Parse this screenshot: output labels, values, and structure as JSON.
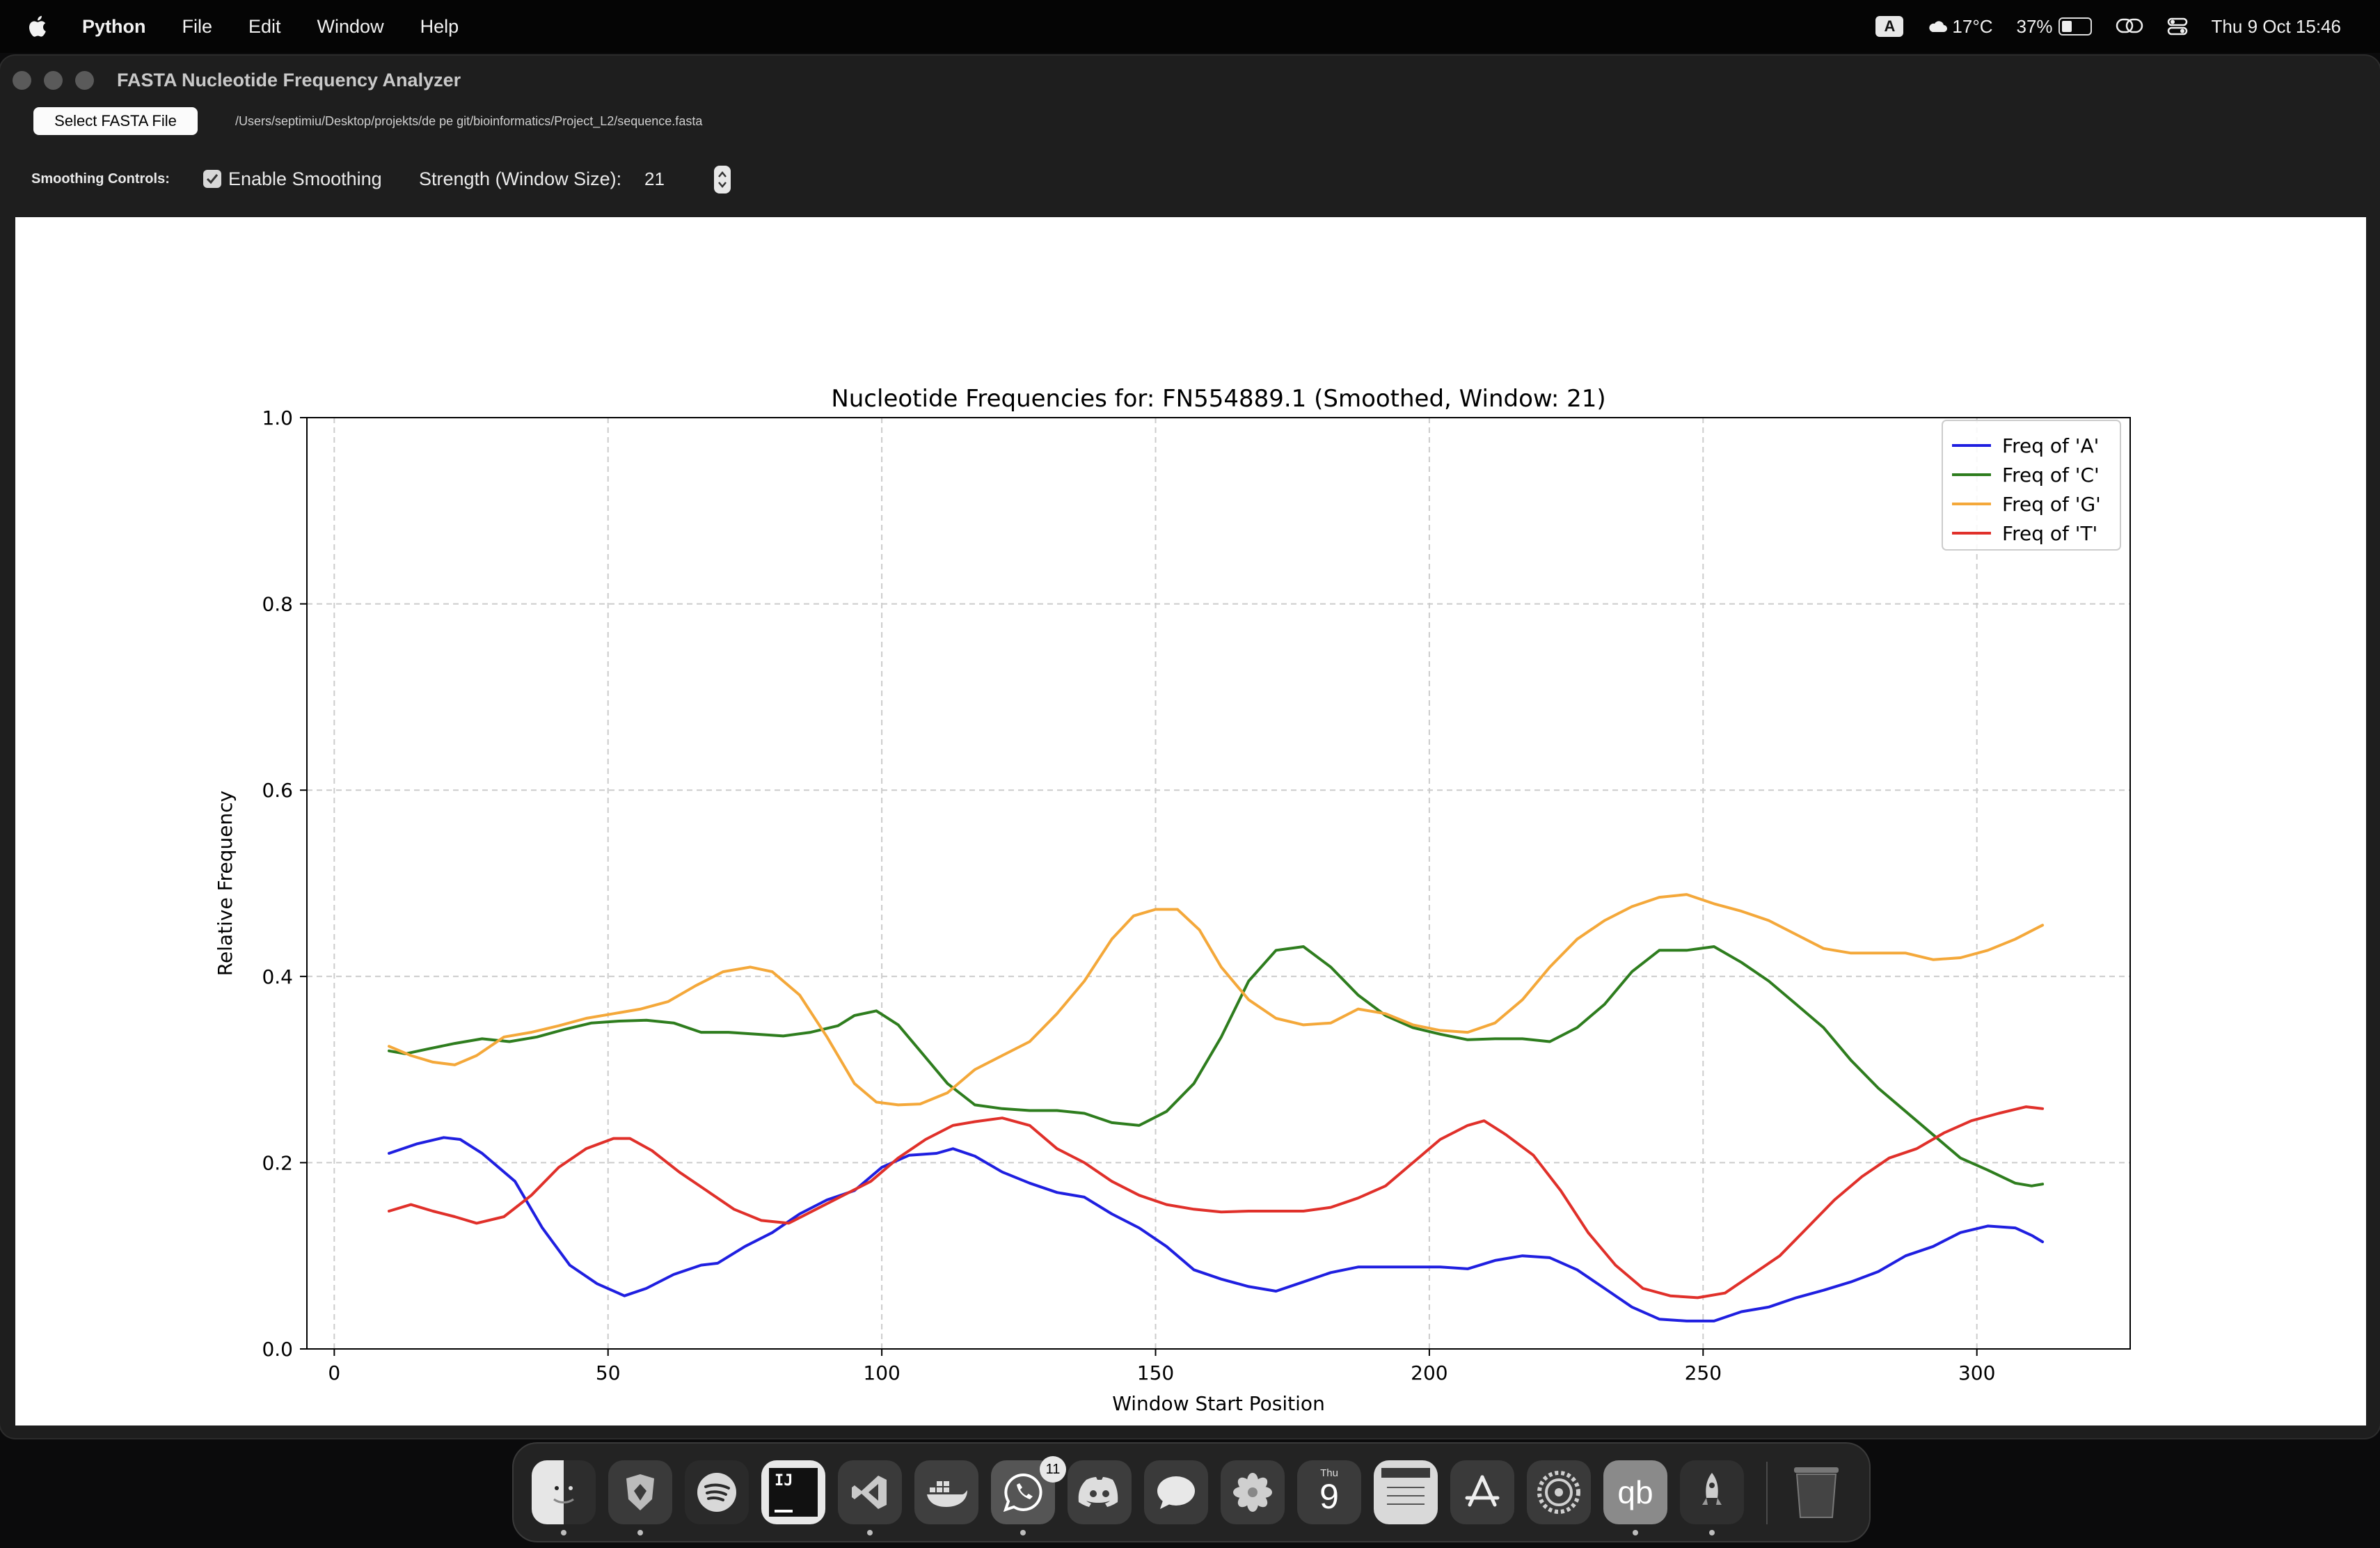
{
  "menubar": {
    "app_name": "Python",
    "items": [
      "File",
      "Edit",
      "Window",
      "Help"
    ],
    "keyboard": "A",
    "weather": "17°C",
    "battery": "37%",
    "datetime": "Thu 9 Oct  15:46"
  },
  "window": {
    "title": "FASTA Nucleotide Frequency Analyzer",
    "select_button": "Select FASTA File",
    "file_path": "/Users/septimiu/Desktop/projekts/de pe git/bioinformatics/Project_L2/sequence.fasta",
    "smoothing_label": "Smoothing Controls:",
    "enable_smoothing_label": "Enable Smoothing",
    "enable_smoothing_checked": true,
    "strength_label": "Strength (Window Size):",
    "strength_value": "21"
  },
  "dock": {
    "calendar_day": "Thu",
    "calendar_date": "9",
    "whatsapp_badge": "11",
    "qb_label": "qb"
  },
  "chart_data": {
    "type": "line",
    "title": "Nucleotide Frequencies for: FN554889.1 (Smoothed, Window: 21)",
    "xlabel": "Window Start Position",
    "ylabel": "Relative Frequency",
    "xlim": [
      -5,
      328
    ],
    "ylim": [
      0.0,
      1.0
    ],
    "xticks": [
      0,
      50,
      100,
      150,
      200,
      250,
      300
    ],
    "yticks": [
      0.0,
      0.2,
      0.4,
      0.6,
      0.8,
      1.0
    ],
    "grid": true,
    "legend_position": "top-right",
    "series": [
      {
        "name": "Freq of 'A'",
        "color": "#1f1fe0",
        "x": [
          10,
          15,
          20,
          23,
          27,
          33,
          38,
          43,
          48,
          53,
          57,
          62,
          67,
          70,
          75,
          80,
          85,
          90,
          95,
          100,
          105,
          110,
          113,
          117,
          122,
          127,
          132,
          137,
          142,
          147,
          152,
          157,
          162,
          167,
          172,
          177,
          182,
          187,
          192,
          197,
          202,
          207,
          212,
          217,
          222,
          227,
          232,
          237,
          242,
          247,
          252,
          257,
          262,
          267,
          272,
          277,
          282,
          287,
          292,
          297,
          302,
          307,
          310,
          312
        ],
        "y": [
          0.21,
          0.22,
          0.227,
          0.225,
          0.21,
          0.18,
          0.13,
          0.09,
          0.07,
          0.057,
          0.065,
          0.08,
          0.09,
          0.092,
          0.11,
          0.125,
          0.145,
          0.16,
          0.17,
          0.195,
          0.208,
          0.21,
          0.215,
          0.207,
          0.19,
          0.178,
          0.168,
          0.163,
          0.145,
          0.13,
          0.11,
          0.085,
          0.075,
          0.067,
          0.062,
          0.072,
          0.082,
          0.088,
          0.088,
          0.088,
          0.088,
          0.086,
          0.095,
          0.1,
          0.098,
          0.085,
          0.065,
          0.045,
          0.032,
          0.03,
          0.03,
          0.04,
          0.045,
          0.055,
          0.063,
          0.072,
          0.083,
          0.1,
          0.11,
          0.125,
          0.132,
          0.13,
          0.122,
          0.115
        ]
      },
      {
        "name": "Freq of 'C'",
        "color": "#2e7d1e",
        "x": [
          10,
          13,
          17,
          22,
          27,
          32,
          37,
          42,
          47,
          52,
          57,
          62,
          67,
          72,
          77,
          82,
          87,
          92,
          95,
          99,
          103,
          107,
          112,
          117,
          122,
          127,
          132,
          137,
          142,
          147,
          152,
          157,
          162,
          167,
          172,
          177,
          182,
          187,
          192,
          197,
          202,
          207,
          212,
          217,
          222,
          227,
          232,
          237,
          242,
          247,
          252,
          257,
          262,
          267,
          272,
          277,
          282,
          287,
          292,
          297,
          302,
          307,
          310,
          312
        ],
        "y": [
          0.32,
          0.317,
          0.322,
          0.328,
          0.333,
          0.33,
          0.335,
          0.343,
          0.35,
          0.352,
          0.353,
          0.35,
          0.34,
          0.34,
          0.338,
          0.336,
          0.34,
          0.347,
          0.358,
          0.363,
          0.348,
          0.32,
          0.285,
          0.262,
          0.258,
          0.256,
          0.256,
          0.253,
          0.243,
          0.24,
          0.255,
          0.285,
          0.335,
          0.395,
          0.428,
          0.432,
          0.41,
          0.38,
          0.358,
          0.345,
          0.338,
          0.332,
          0.333,
          0.333,
          0.33,
          0.345,
          0.37,
          0.405,
          0.428,
          0.428,
          0.432,
          0.415,
          0.395,
          0.37,
          0.345,
          0.31,
          0.28,
          0.255,
          0.23,
          0.205,
          0.192,
          0.178,
          0.175,
          0.177
        ]
      },
      {
        "name": "Freq of 'G'",
        "color": "#f4a83a",
        "x": [
          10,
          14,
          18,
          22,
          26,
          31,
          36,
          41,
          46,
          51,
          56,
          61,
          66,
          71,
          76,
          80,
          85,
          90,
          95,
          99,
          103,
          107,
          112,
          117,
          122,
          127,
          132,
          137,
          142,
          146,
          150,
          154,
          158,
          162,
          167,
          172,
          177,
          182,
          187,
          192,
          197,
          202,
          207,
          212,
          217,
          222,
          227,
          232,
          237,
          242,
          247,
          252,
          257,
          262,
          267,
          272,
          277,
          282,
          287,
          292,
          297,
          302,
          307,
          312
        ],
        "y": [
          0.325,
          0.315,
          0.308,
          0.305,
          0.315,
          0.335,
          0.34,
          0.347,
          0.355,
          0.36,
          0.365,
          0.373,
          0.39,
          0.405,
          0.41,
          0.405,
          0.38,
          0.335,
          0.285,
          0.265,
          0.262,
          0.263,
          0.275,
          0.3,
          0.315,
          0.33,
          0.36,
          0.395,
          0.44,
          0.465,
          0.472,
          0.472,
          0.45,
          0.41,
          0.375,
          0.355,
          0.348,
          0.35,
          0.365,
          0.36,
          0.348,
          0.342,
          0.34,
          0.35,
          0.375,
          0.41,
          0.44,
          0.46,
          0.475,
          0.485,
          0.488,
          0.478,
          0.47,
          0.46,
          0.445,
          0.43,
          0.425,
          0.425,
          0.425,
          0.418,
          0.42,
          0.428,
          0.44,
          0.455
        ]
      },
      {
        "name": "Freq of 'T'",
        "color": "#e0302a",
        "x": [
          10,
          14,
          18,
          22,
          26,
          31,
          36,
          41,
          46,
          51,
          54,
          58,
          63,
          68,
          73,
          78,
          83,
          88,
          93,
          98,
          103,
          108,
          113,
          117,
          122,
          127,
          132,
          137,
          142,
          147,
          152,
          157,
          162,
          167,
          172,
          177,
          182,
          187,
          192,
          197,
          202,
          207,
          210,
          214,
          219,
          224,
          229,
          234,
          239,
          244,
          249,
          254,
          259,
          264,
          269,
          274,
          279,
          284,
          289,
          294,
          299,
          304,
          309,
          312
        ],
        "y": [
          0.148,
          0.155,
          0.148,
          0.142,
          0.135,
          0.142,
          0.165,
          0.195,
          0.215,
          0.226,
          0.226,
          0.213,
          0.19,
          0.17,
          0.15,
          0.138,
          0.135,
          0.15,
          0.165,
          0.18,
          0.205,
          0.225,
          0.24,
          0.244,
          0.248,
          0.24,
          0.215,
          0.2,
          0.18,
          0.165,
          0.155,
          0.15,
          0.147,
          0.148,
          0.148,
          0.148,
          0.152,
          0.162,
          0.175,
          0.2,
          0.225,
          0.24,
          0.245,
          0.23,
          0.208,
          0.17,
          0.125,
          0.09,
          0.065,
          0.057,
          0.055,
          0.06,
          0.08,
          0.1,
          0.13,
          0.16,
          0.185,
          0.205,
          0.215,
          0.232,
          0.245,
          0.253,
          0.26,
          0.258
        ]
      }
    ]
  }
}
